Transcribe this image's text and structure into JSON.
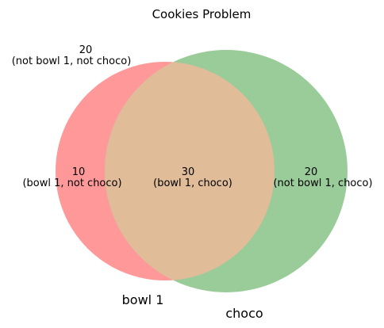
{
  "title": "Cookies Problem",
  "colors": {
    "bowl1": "#ff9999",
    "choco": "#99cc99",
    "overlap": "#e0bc99"
  },
  "sets": {
    "bowl1": "bowl 1",
    "choco": "choco"
  },
  "regions": {
    "outside": {
      "count": "20",
      "label": "(not bowl 1, not choco)"
    },
    "bowl1_only": {
      "count": "10",
      "label": "(bowl 1, not choco)"
    },
    "both": {
      "count": "30",
      "label": "(bowl 1, choco)"
    },
    "choco_only": {
      "count": "20",
      "label": "(not bowl 1, choco)"
    }
  }
}
